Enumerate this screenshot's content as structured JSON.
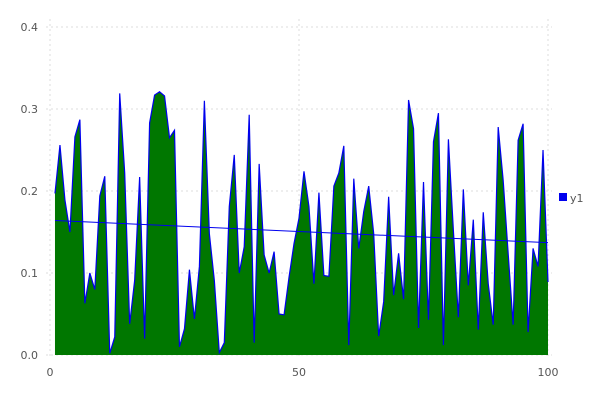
{
  "chart_data": {
    "type": "area",
    "title": "",
    "xlabel": "",
    "ylabel": "",
    "xlim": [
      0,
      100
    ],
    "ylim": [
      0,
      0.4
    ],
    "x_ticks": [
      "0",
      "50",
      "100"
    ],
    "x_tick_values": [
      0,
      50,
      100
    ],
    "y_ticks": [
      "0.0",
      "0.1",
      "0.2",
      "0.3",
      "0.4"
    ],
    "y_tick_values": [
      0,
      0.1,
      0.2,
      0.3,
      0.4
    ],
    "grid": true,
    "legend_placement": "right",
    "series": [
      {
        "name": "y1",
        "fill_color": "#007700",
        "line_color": "#0000ee",
        "x_start": 1,
        "values": [
          0.197,
          0.256,
          0.189,
          0.15,
          0.266,
          0.287,
          0.063,
          0.1,
          0.08,
          0.194,
          0.218,
          0.002,
          0.022,
          0.319,
          0.222,
          0.038,
          0.091,
          0.217,
          0.02,
          0.283,
          0.317,
          0.321,
          0.316,
          0.265,
          0.274,
          0.01,
          0.032,
          0.104,
          0.044,
          0.108,
          0.31,
          0.148,
          0.091,
          0.003,
          0.015,
          0.181,
          0.244,
          0.1,
          0.132,
          0.293,
          0.015,
          0.233,
          0.122,
          0.1,
          0.126,
          0.05,
          0.049,
          0.095,
          0.136,
          0.167,
          0.224,
          0.181,
          0.087,
          0.198,
          0.097,
          0.096,
          0.206,
          0.222,
          0.255,
          0.012,
          0.215,
          0.13,
          0.175,
          0.206,
          0.148,
          0.023,
          0.065,
          0.193,
          0.073,
          0.124,
          0.068,
          0.311,
          0.276,
          0.033,
          0.211,
          0.043,
          0.26,
          0.295,
          0.012,
          0.263,
          0.152,
          0.046,
          0.202,
          0.085,
          0.165,
          0.031,
          0.174,
          0.087,
          0.037,
          0.278,
          0.213,
          0.124,
          0.037,
          0.262,
          0.282,
          0.028,
          0.13,
          0.108,
          0.25,
          0.089
        ]
      }
    ],
    "trend_line": {
      "color": "#0000ee",
      "x": [
        1,
        100
      ],
      "y": [
        0.164,
        0.137
      ]
    }
  }
}
